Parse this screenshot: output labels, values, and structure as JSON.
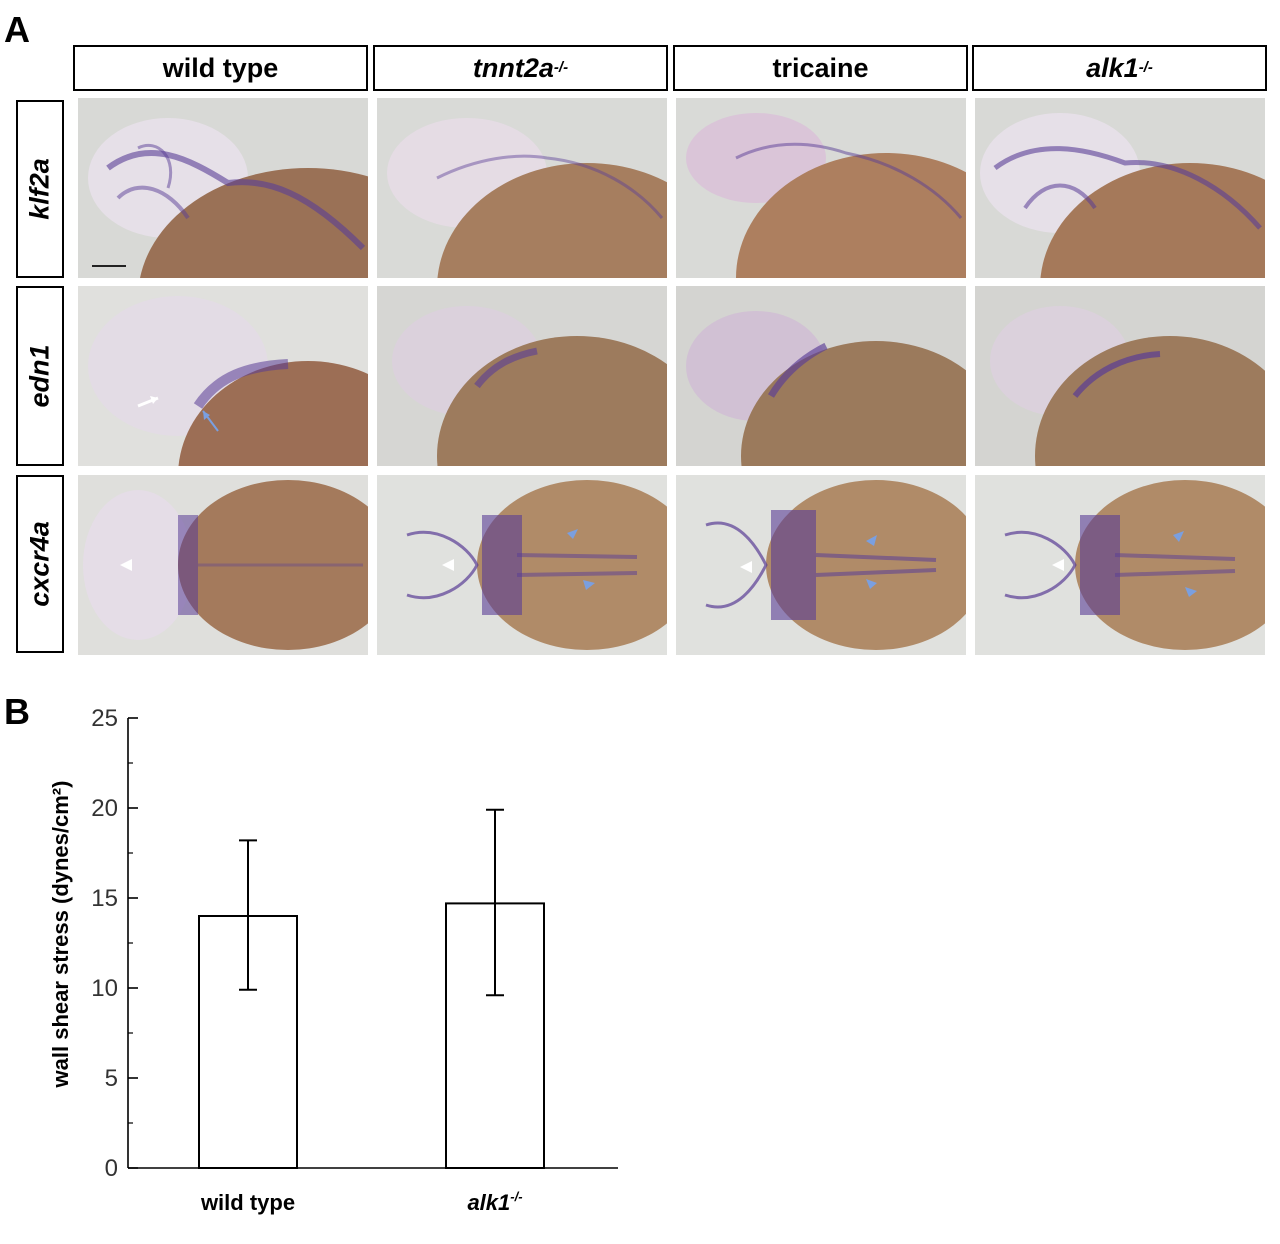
{
  "panel_a": {
    "letter": "A",
    "columns": [
      {
        "label": "wild type",
        "superscript": ""
      },
      {
        "label": "tnnt2a",
        "superscript": "-/-"
      },
      {
        "label": "tricaine",
        "superscript": ""
      },
      {
        "label": "alk1",
        "superscript": "-/-"
      }
    ],
    "rows": [
      {
        "label": "klf2a"
      },
      {
        "label": "edn1"
      },
      {
        "label": "cxcr4a"
      }
    ],
    "colors": {
      "stain": "#5a3d96",
      "yolk": "#9a6f4e",
      "background": "#dcdcd8",
      "blue_arrow": "#7a9fe0",
      "white_arrow": "#ffffff"
    }
  },
  "panel_b": {
    "letter": "B",
    "chart_data": {
      "type": "bar",
      "categories": [
        "wild type",
        "alk1"
      ],
      "category_superscripts": [
        "",
        "-/-"
      ],
      "values": [
        14.0,
        14.7
      ],
      "error_low": [
        9.9,
        9.6
      ],
      "error_high": [
        18.2,
        19.9
      ],
      "ylabel": "wall shear stress (dynes/cm²)",
      "ylim": [
        0,
        25
      ],
      "yticks": [
        "0",
        "5",
        "10",
        "15",
        "20",
        "25"
      ],
      "ytick_values": [
        0,
        5,
        10,
        15,
        20,
        25
      ],
      "bar_fill": "#ffffff",
      "bar_stroke": "#000000"
    }
  }
}
